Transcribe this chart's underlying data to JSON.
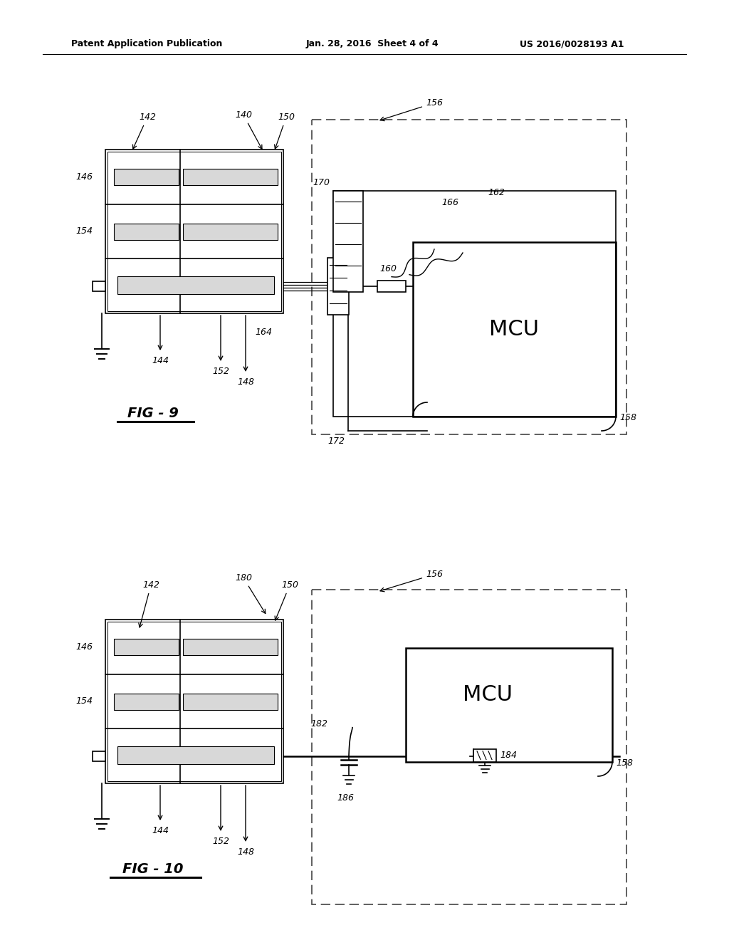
{
  "bg_color": "#ffffff",
  "line_color": "#000000",
  "header_left": "Patent Application Publication",
  "header_mid": "Jan. 28, 2016  Sheet 4 of 4",
  "header_right": "US 2016/0028193 A1",
  "fig9_label": "FIG - 9",
  "fig10_label": "FIG - 10",
  "mcu_text": "MCU",
  "gray_fill": "#d8d8d8"
}
